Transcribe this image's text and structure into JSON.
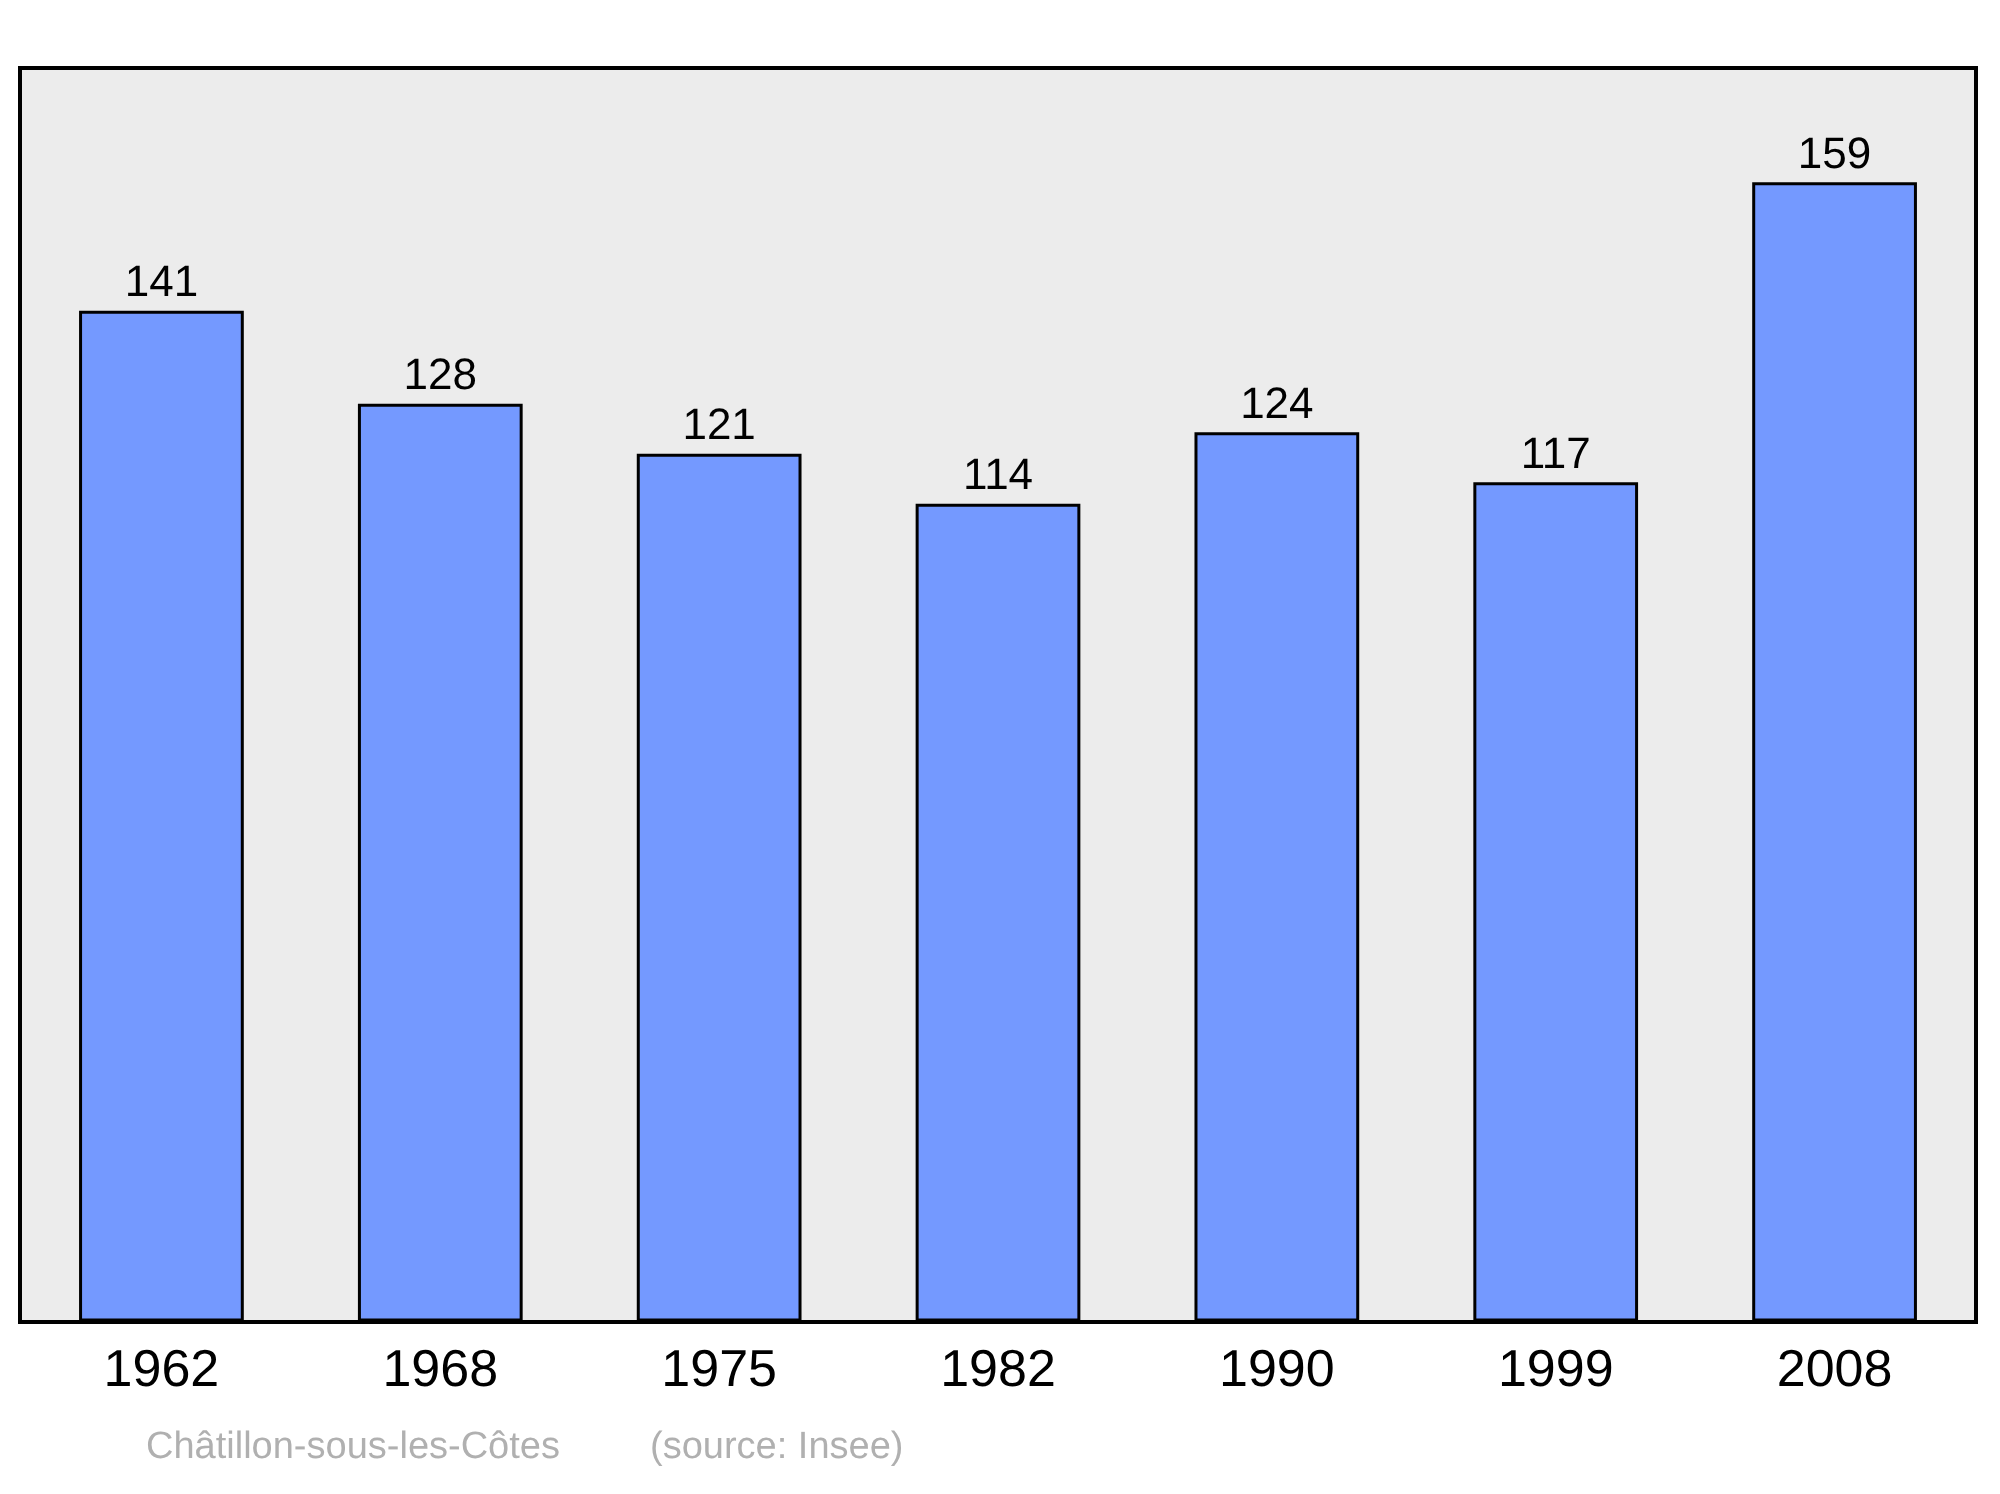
{
  "chart_data": {
    "type": "bar",
    "categories": [
      "1962",
      "1968",
      "1975",
      "1982",
      "1990",
      "1999",
      "2008"
    ],
    "values": [
      141,
      128,
      121,
      114,
      124,
      117,
      159
    ],
    "color": "#7499ff",
    "data_labels": true,
    "annotations": [
      "Châtillon-sous-les-Côtes",
      "(source: Insee)"
    ]
  }
}
